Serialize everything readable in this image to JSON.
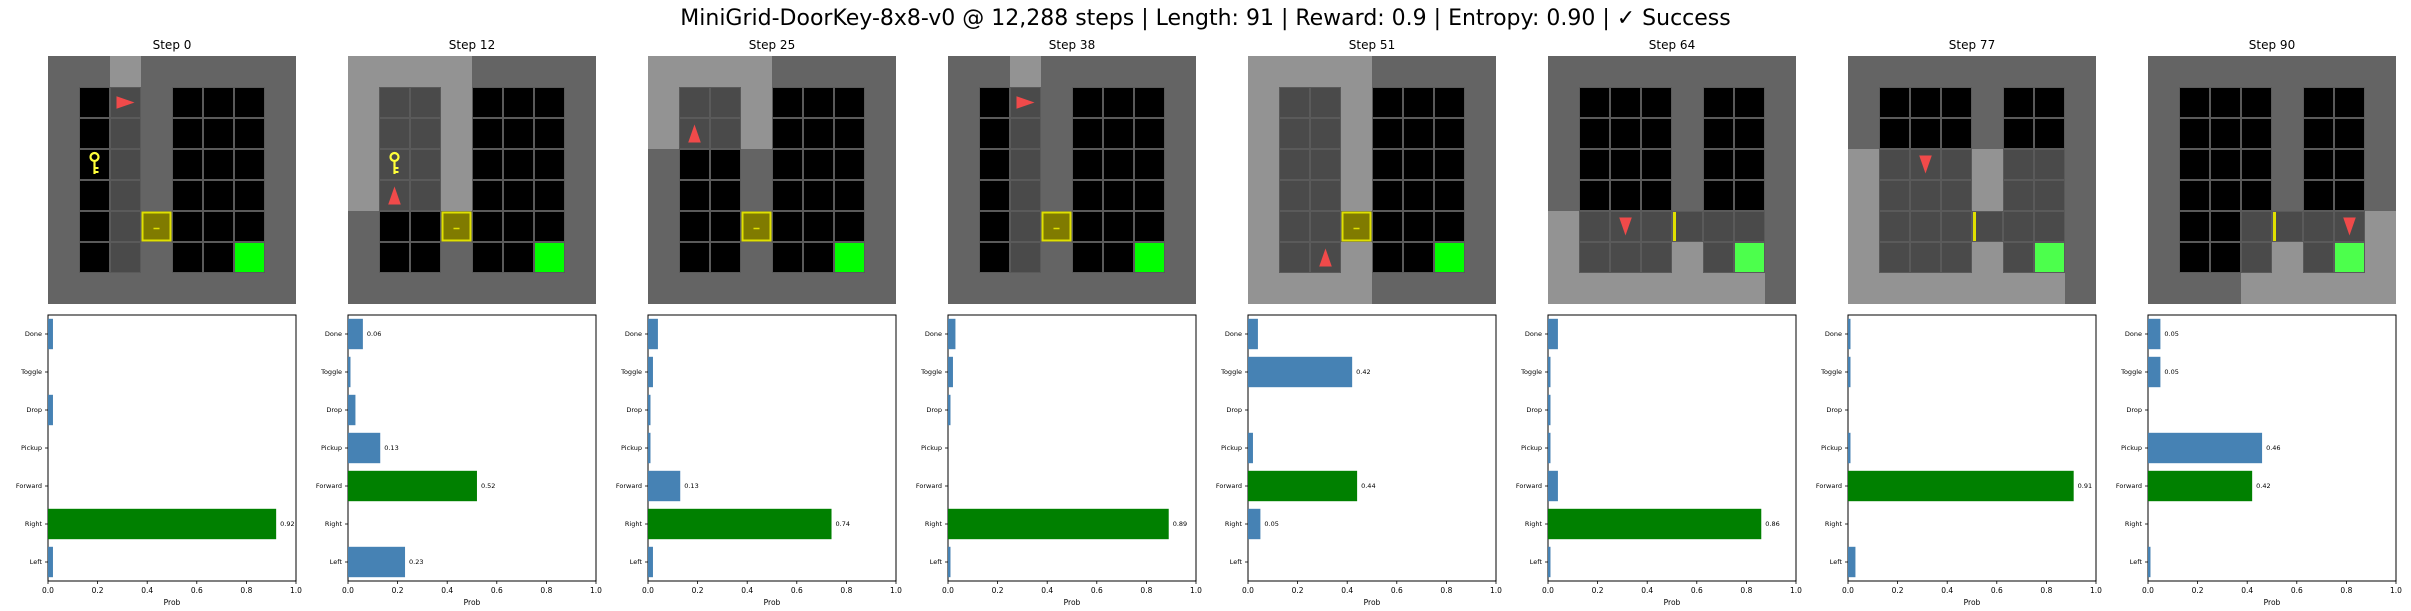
{
  "figure": {
    "title": "MiniGrid-DoorKey-8x8-v0 @ 12,288 steps | Length: 91 | Reward: 0.9 | Entropy: 0.90 | ✓ Success"
  },
  "colors": {
    "wall": "#646464",
    "floor": "#000000",
    "visible_wall": "#939393",
    "visible_floor": "#4a4a4a",
    "grid_line": "#5a5a5a",
    "agent": "#f04a4a",
    "key": "#ffff3a",
    "door_fill": "#807b00",
    "door_border": "#e0e000",
    "goal": "#00ff00",
    "goal_visible": "#4cff4c",
    "bar_default": "#4682b4",
    "bar_chosen": "#008000"
  },
  "chart_data": [
    {
      "type": "bar",
      "orientation": "horizontal",
      "title": "Step 0",
      "xlabel": "Prob",
      "xlim": [
        0,
        1
      ],
      "xticks": [
        "0.0",
        "0.2",
        "0.4",
        "0.6",
        "0.8",
        "1.0"
      ],
      "categories": [
        "Left",
        "Right",
        "Forward",
        "Pickup",
        "Drop",
        "Toggle",
        "Done"
      ],
      "values": [
        0.02,
        0.92,
        0.0,
        0.0,
        0.02,
        0.0,
        0.02
      ],
      "value_labels": [
        "",
        "0.92",
        "",
        "",
        "",
        "",
        ""
      ],
      "chosen": "Right",
      "grid": {
        "agent": [
          2,
          1
        ],
        "dir": "right",
        "key": [
          1,
          3
        ],
        "door": [
          3,
          5
        ],
        "visible": {
          "x": [
            2,
            2
          ],
          "y": [
            0,
            6
          ]
        }
      }
    },
    {
      "type": "bar",
      "orientation": "horizontal",
      "title": "Step 12",
      "xlabel": "Prob",
      "xlim": [
        0,
        1
      ],
      "xticks": [
        "0.0",
        "0.2",
        "0.4",
        "0.6",
        "0.8",
        "1.0"
      ],
      "categories": [
        "Left",
        "Right",
        "Forward",
        "Pickup",
        "Drop",
        "Toggle",
        "Done"
      ],
      "values": [
        0.23,
        0.0,
        0.52,
        0.13,
        0.03,
        0.01,
        0.06
      ],
      "value_labels": [
        "0.23",
        "",
        "0.52",
        "0.13",
        "",
        "",
        "0.06"
      ],
      "chosen": "Forward",
      "grid": {
        "agent": [
          1,
          4
        ],
        "dir": "up",
        "key": [
          1,
          3
        ],
        "door": [
          3,
          5
        ],
        "visible": {
          "x": [
            0,
            3
          ],
          "y": [
            0,
            4
          ]
        }
      }
    },
    {
      "type": "bar",
      "orientation": "horizontal",
      "title": "Step 25",
      "xlabel": "Prob",
      "xlim": [
        0,
        1
      ],
      "xticks": [
        "0.0",
        "0.2",
        "0.4",
        "0.6",
        "0.8",
        "1.0"
      ],
      "categories": [
        "Left",
        "Right",
        "Forward",
        "Pickup",
        "Drop",
        "Toggle",
        "Done"
      ],
      "values": [
        0.02,
        0.74,
        0.13,
        0.01,
        0.01,
        0.02,
        0.04
      ],
      "value_labels": [
        "",
        "0.74",
        "0.13",
        "",
        "",
        "",
        ""
      ],
      "chosen": "Right",
      "grid": {
        "agent": [
          1,
          2
        ],
        "dir": "up",
        "key": null,
        "door": [
          3,
          5
        ],
        "visible": {
          "x": [
            0,
            3
          ],
          "y": [
            0,
            2
          ]
        }
      }
    },
    {
      "type": "bar",
      "orientation": "horizontal",
      "title": "Step 38",
      "xlabel": "Prob",
      "xlim": [
        0,
        1
      ],
      "xticks": [
        "0.0",
        "0.2",
        "0.4",
        "0.6",
        "0.8",
        "1.0"
      ],
      "categories": [
        "Left",
        "Right",
        "Forward",
        "Pickup",
        "Drop",
        "Toggle",
        "Done"
      ],
      "values": [
        0.01,
        0.89,
        0.0,
        0.0,
        0.01,
        0.02,
        0.03
      ],
      "value_labels": [
        "",
        "0.89",
        "",
        "",
        "",
        "",
        ""
      ],
      "chosen": "Right",
      "grid": {
        "agent": [
          2,
          1
        ],
        "dir": "right",
        "key": null,
        "door": [
          3,
          5
        ],
        "visible": {
          "x": [
            2,
            2
          ],
          "y": [
            0,
            6
          ]
        }
      }
    },
    {
      "type": "bar",
      "orientation": "horizontal",
      "title": "Step 51",
      "xlabel": "Prob",
      "xlim": [
        0,
        1
      ],
      "xticks": [
        "0.0",
        "0.2",
        "0.4",
        "0.6",
        "0.8",
        "1.0"
      ],
      "categories": [
        "Left",
        "Right",
        "Forward",
        "Pickup",
        "Drop",
        "Toggle",
        "Done"
      ],
      "values": [
        0.0,
        0.05,
        0.44,
        0.02,
        0.0,
        0.42,
        0.04
      ],
      "value_labels": [
        "",
        "0.05",
        "0.44",
        "",
        "",
        "0.42",
        ""
      ],
      "chosen": "Forward",
      "grid": {
        "agent": [
          2,
          6
        ],
        "dir": "up",
        "key": null,
        "door": [
          3,
          5
        ],
        "visible": {
          "x": [
            0,
            3
          ],
          "y": [
            0,
            7
          ]
        }
      }
    },
    {
      "type": "bar",
      "orientation": "horizontal",
      "title": "Step 64",
      "xlabel": "Prob",
      "xlim": [
        0,
        1
      ],
      "xticks": [
        "0.0",
        "0.2",
        "0.4",
        "0.6",
        "0.8",
        "1.0"
      ],
      "categories": [
        "Left",
        "Right",
        "Forward",
        "Pickup",
        "Drop",
        "Toggle",
        "Done"
      ],
      "values": [
        0.01,
        0.86,
        0.04,
        0.01,
        0.01,
        0.01,
        0.04
      ],
      "value_labels": [
        "",
        "0.86",
        "",
        "",
        "",
        "",
        ""
      ],
      "chosen": "Right",
      "grid": {
        "agent": [
          2,
          5
        ],
        "dir": "down",
        "key": null,
        "door": [
          4,
          5
        ],
        "door_open": true,
        "visible": {
          "x": [
            0,
            6
          ],
          "y": [
            5,
            7
          ]
        }
      }
    },
    {
      "type": "bar",
      "orientation": "horizontal",
      "title": "Step 77",
      "xlabel": "Prob",
      "xlim": [
        0,
        1
      ],
      "xticks": [
        "0.0",
        "0.2",
        "0.4",
        "0.6",
        "0.8",
        "1.0"
      ],
      "categories": [
        "Left",
        "Right",
        "Forward",
        "Pickup",
        "Drop",
        "Toggle",
        "Done"
      ],
      "values": [
        0.03,
        0.0,
        0.91,
        0.01,
        0.0,
        0.01,
        0.01
      ],
      "value_labels": [
        "",
        "",
        "0.91",
        "",
        "",
        "",
        ""
      ],
      "chosen": "Forward",
      "grid": {
        "agent": [
          2,
          3
        ],
        "dir": "down",
        "key": null,
        "door": [
          4,
          5
        ],
        "door_open": true,
        "visible": {
          "x": [
            0,
            6
          ],
          "y": [
            3,
            7
          ]
        }
      }
    },
    {
      "type": "bar",
      "orientation": "horizontal",
      "title": "Step 90",
      "xlabel": "Prob",
      "xlim": [
        0,
        1
      ],
      "xticks": [
        "0.0",
        "0.2",
        "0.4",
        "0.6",
        "0.8",
        "1.0"
      ],
      "categories": [
        "Left",
        "Right",
        "Forward",
        "Pickup",
        "Drop",
        "Toggle",
        "Done"
      ],
      "values": [
        0.01,
        0.0,
        0.42,
        0.46,
        0.0,
        0.05,
        0.05
      ],
      "value_labels": [
        "",
        "",
        "0.42",
        "0.46",
        "",
        "0.05",
        "0.05"
      ],
      "chosen": "Forward",
      "grid": {
        "agent": [
          6,
          5
        ],
        "dir": "down",
        "key": null,
        "door": [
          4,
          5
        ],
        "door_open": true,
        "visible": {
          "x": [
            3,
            7
          ],
          "y": [
            5,
            7
          ]
        }
      }
    }
  ]
}
